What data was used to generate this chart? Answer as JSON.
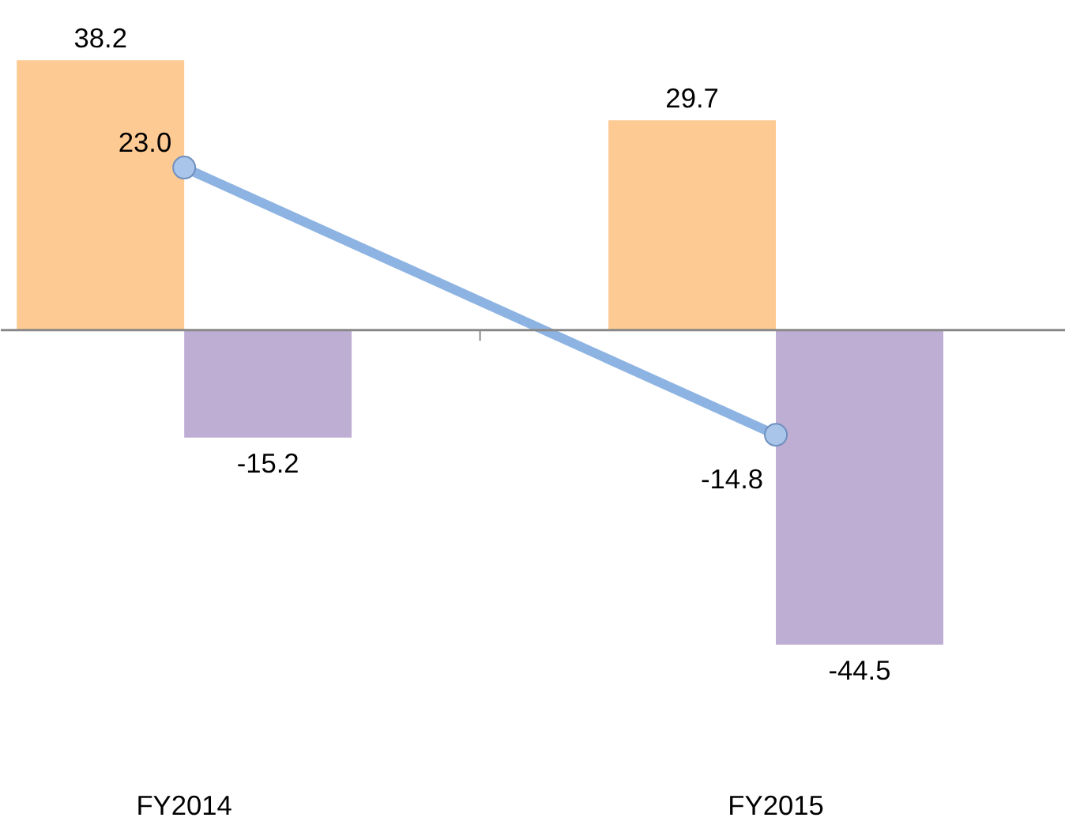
{
  "chart_data": {
    "type": "bar",
    "categories": [
      "FY2014",
      "FY2015"
    ],
    "grid": false,
    "series": [
      {
        "color": "#fdca93",
        "values": [
          38.2,
          29.7
        ],
        "value_labels": [
          "38.2",
          "29.7"
        ]
      },
      {
        "color": "#bfaed4",
        "values": [
          -15.2,
          -44.5
        ],
        "value_labels": [
          "-15.2",
          "-44.5"
        ]
      },
      {
        "type": "line",
        "color": "#8db3e2",
        "marker": "circle",
        "values": [
          23.0,
          -14.8
        ],
        "value_labels": [
          "23.0",
          "-14.8"
        ]
      }
    ]
  }
}
